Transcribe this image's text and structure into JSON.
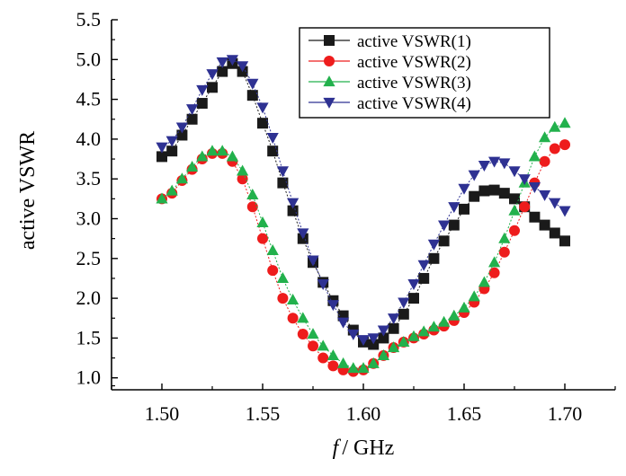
{
  "chart_data": {
    "type": "scatter",
    "ylabel": "active VSWR",
    "xlabel_italic": "f",
    "xlabel_rest": "/ GHz",
    "xlim": [
      1.475,
      1.725
    ],
    "ylim": [
      0.85,
      5.5
    ],
    "xticks": [
      1.5,
      1.55,
      1.6,
      1.65,
      1.7
    ],
    "xtick_labels": [
      "1.50",
      "1.55",
      "1.60",
      "1.65",
      "1.70"
    ],
    "yticks": [
      1.0,
      1.5,
      2.0,
      2.5,
      3.0,
      3.5,
      4.0,
      4.5,
      5.0,
      5.5
    ],
    "ytick_labels": [
      "1.0",
      "1.5",
      "2.0",
      "2.5",
      "3.0",
      "3.5",
      "4.0",
      "4.5",
      "5.0",
      "5.5"
    ],
    "legend_position": "top-right",
    "series": [
      {
        "name": "active VSWR(1)",
        "marker": "square",
        "color": "#1a1a1a",
        "x": [
          1.5,
          1.505,
          1.51,
          1.515,
          1.52,
          1.525,
          1.53,
          1.535,
          1.54,
          1.545,
          1.55,
          1.555,
          1.56,
          1.565,
          1.57,
          1.575,
          1.58,
          1.585,
          1.59,
          1.595,
          1.6,
          1.605,
          1.61,
          1.615,
          1.62,
          1.625,
          1.63,
          1.635,
          1.64,
          1.645,
          1.65,
          1.655,
          1.66,
          1.665,
          1.67,
          1.675,
          1.68,
          1.685,
          1.69,
          1.695,
          1.7
        ],
        "y": [
          3.78,
          3.85,
          4.05,
          4.25,
          4.45,
          4.65,
          4.85,
          4.95,
          4.85,
          4.55,
          4.2,
          3.85,
          3.45,
          3.1,
          2.75,
          2.45,
          2.2,
          1.97,
          1.78,
          1.6,
          1.45,
          1.42,
          1.5,
          1.62,
          1.8,
          2.0,
          2.25,
          2.5,
          2.72,
          2.92,
          3.12,
          3.28,
          3.35,
          3.36,
          3.32,
          3.25,
          3.15,
          3.02,
          2.92,
          2.82,
          2.72
        ]
      },
      {
        "name": "active VSWR(2)",
        "marker": "circle",
        "color": "#ee1c1c",
        "x": [
          1.5,
          1.505,
          1.51,
          1.515,
          1.52,
          1.525,
          1.53,
          1.535,
          1.54,
          1.545,
          1.55,
          1.555,
          1.56,
          1.565,
          1.57,
          1.575,
          1.58,
          1.585,
          1.59,
          1.595,
          1.6,
          1.605,
          1.61,
          1.615,
          1.62,
          1.625,
          1.63,
          1.635,
          1.64,
          1.645,
          1.65,
          1.655,
          1.66,
          1.665,
          1.67,
          1.675,
          1.68,
          1.685,
          1.69,
          1.695,
          1.7
        ],
        "y": [
          3.25,
          3.32,
          3.48,
          3.62,
          3.75,
          3.82,
          3.82,
          3.72,
          3.5,
          3.15,
          2.75,
          2.35,
          2.0,
          1.75,
          1.55,
          1.4,
          1.25,
          1.15,
          1.1,
          1.08,
          1.1,
          1.18,
          1.28,
          1.38,
          1.45,
          1.5,
          1.55,
          1.6,
          1.65,
          1.72,
          1.82,
          1.95,
          2.12,
          2.32,
          2.58,
          2.85,
          3.15,
          3.45,
          3.72,
          3.88,
          3.93
        ]
      },
      {
        "name": "active VSWR(3)",
        "marker": "triangle-up",
        "color": "#22b14c",
        "x": [
          1.5,
          1.505,
          1.51,
          1.515,
          1.52,
          1.525,
          1.53,
          1.535,
          1.54,
          1.545,
          1.55,
          1.555,
          1.56,
          1.565,
          1.57,
          1.575,
          1.58,
          1.585,
          1.59,
          1.595,
          1.6,
          1.605,
          1.61,
          1.615,
          1.62,
          1.625,
          1.63,
          1.635,
          1.64,
          1.645,
          1.65,
          1.655,
          1.66,
          1.665,
          1.67,
          1.675,
          1.68,
          1.685,
          1.69,
          1.695,
          1.7
        ],
        "y": [
          3.25,
          3.35,
          3.5,
          3.65,
          3.78,
          3.85,
          3.85,
          3.78,
          3.6,
          3.3,
          2.95,
          2.6,
          2.25,
          1.98,
          1.75,
          1.55,
          1.4,
          1.28,
          1.18,
          1.12,
          1.12,
          1.18,
          1.28,
          1.38,
          1.45,
          1.52,
          1.58,
          1.64,
          1.7,
          1.78,
          1.88,
          2.02,
          2.2,
          2.45,
          2.75,
          3.1,
          3.45,
          3.78,
          4.02,
          4.15,
          4.2
        ]
      },
      {
        "name": "active VSWR(4)",
        "marker": "triangle-down",
        "color": "#2e3192",
        "x": [
          1.5,
          1.505,
          1.51,
          1.515,
          1.52,
          1.525,
          1.53,
          1.535,
          1.54,
          1.545,
          1.55,
          1.555,
          1.56,
          1.565,
          1.57,
          1.575,
          1.58,
          1.585,
          1.59,
          1.595,
          1.6,
          1.605,
          1.61,
          1.615,
          1.62,
          1.625,
          1.63,
          1.635,
          1.64,
          1.645,
          1.65,
          1.655,
          1.66,
          1.665,
          1.67,
          1.675,
          1.68,
          1.685,
          1.69,
          1.695,
          1.7
        ],
        "y": [
          3.9,
          3.98,
          4.15,
          4.38,
          4.62,
          4.82,
          4.97,
          5.0,
          4.92,
          4.7,
          4.4,
          4.02,
          3.6,
          3.2,
          2.82,
          2.48,
          2.18,
          1.92,
          1.7,
          1.55,
          1.48,
          1.5,
          1.6,
          1.75,
          1.95,
          2.18,
          2.42,
          2.68,
          2.92,
          3.15,
          3.38,
          3.55,
          3.67,
          3.72,
          3.7,
          3.6,
          3.5,
          3.4,
          3.3,
          3.2,
          3.1
        ]
      }
    ]
  }
}
